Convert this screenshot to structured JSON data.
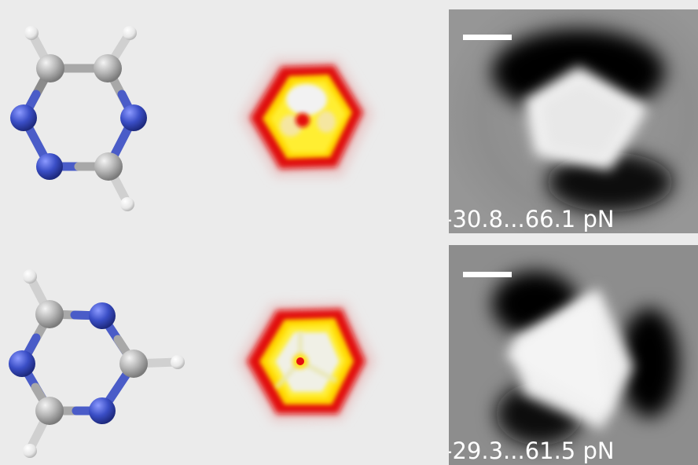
{
  "rows": [
    {
      "molecule": "1,2,4-triazine",
      "range_label": "-30.8...66.1 pN"
    },
    {
      "molecule": "1,3,5-triazine",
      "range_label": "-29.3...61.5 pN"
    }
  ],
  "colors": {
    "carbon": "#b0b0b0",
    "nitrogen": "#3b4fc4",
    "hydrogen": "#f2f2f2",
    "bond_c": "#a8a8a8",
    "bond_n": "#4a5cc8",
    "background": "#ebebeb"
  }
}
